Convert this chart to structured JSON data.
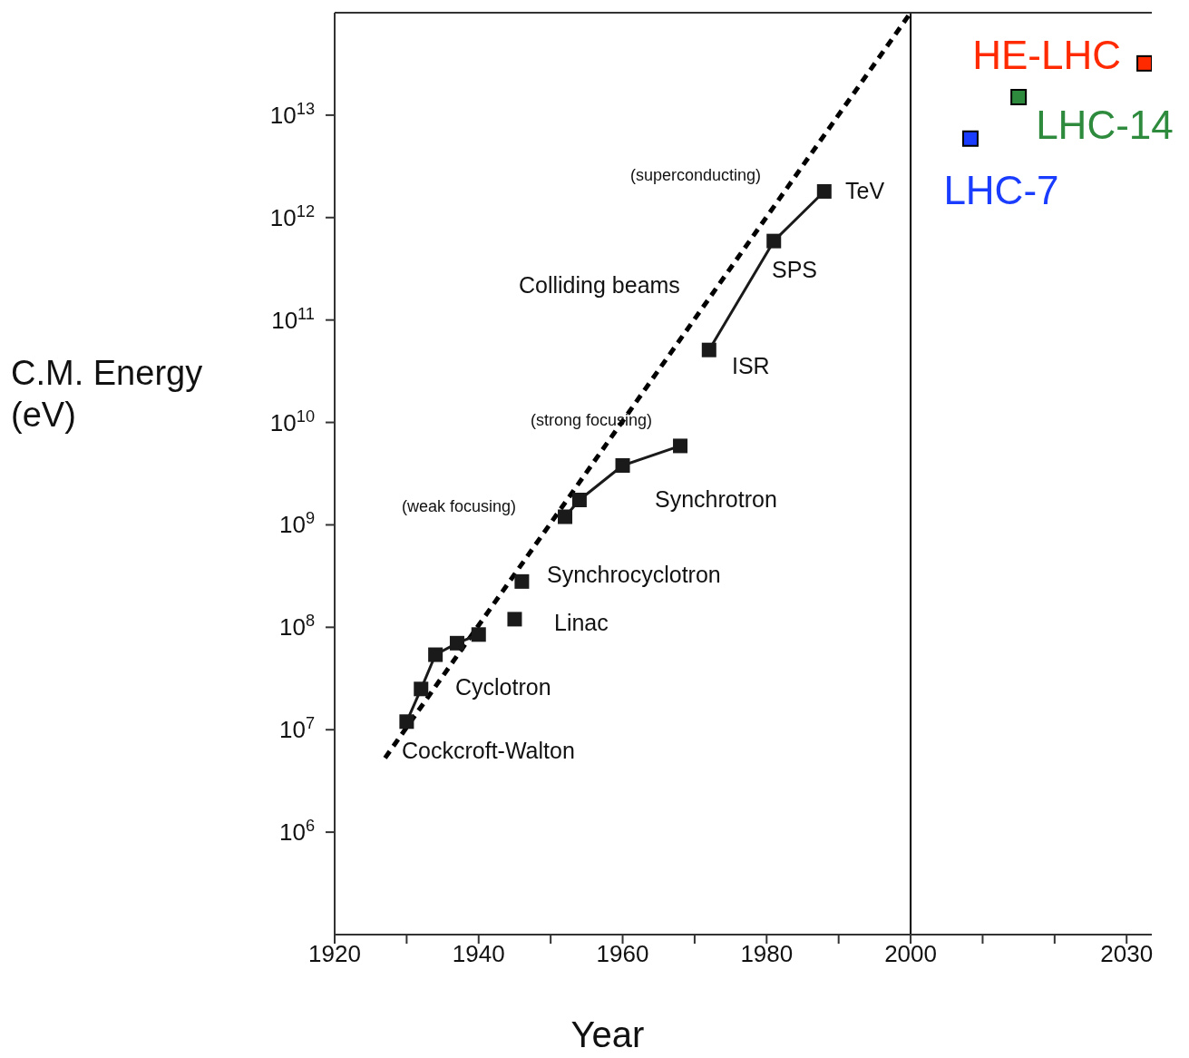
{
  "chart_data": {
    "type": "scatter",
    "xlabel": "Year",
    "ylabel": "C.M. Energy (eV)",
    "log": "y",
    "legend": false,
    "grid": false,
    "xlim": [
      1920,
      2033.5
    ],
    "xticks": [
      1920,
      {
        "value": 1930,
        "label": null
      },
      1940,
      {
        "value": 1950,
        "label": null
      },
      1960,
      {
        "value": 1970,
        "label": null
      },
      1980,
      {
        "value": 1990,
        "label": null
      },
      2000,
      {
        "value": 2010,
        "label": null
      },
      {
        "value": 2020,
        "label": null
      },
      2030
    ],
    "ylim": [
      100000,
      100000000000000
    ],
    "yticks": [
      {
        "value": 1000000,
        "label": "10$^{6}$"
      },
      {
        "value": 10000000,
        "label": "10$^{7}$"
      },
      {
        "value": 100000000,
        "label": "10$^{8}$"
      },
      {
        "value": 1000000000,
        "label": "10$^{9}$"
      },
      {
        "value": 10000000000,
        "label": "10$^{10}$"
      },
      {
        "value": 100000000000,
        "label": "10$^{11}$"
      },
      {
        "value": 1000000000000,
        "label": "10$^{12}$"
      },
      {
        "value": 10000000000000,
        "label": "10$^{13}$"
      }
    ],
    "ref_lines": [
      {
        "axis": "x",
        "value": 2000,
        "color": "#000000"
      }
    ],
    "series": [
      {
        "type": "line",
        "marker": "none",
        "line_style": "dashed",
        "color": "#000000",
        "x": [
          1927,
          2000
        ],
        "values": [
          5300000,
          100000000000000
        ]
      },
      {
        "type": "line",
        "marker": "square",
        "line_style": "solid",
        "color": "#1a1a1a",
        "x": [
          1930,
          1932,
          1934,
          1937,
          1940
        ],
        "values": [
          12000000,
          25000000,
          54000000,
          70000000,
          85000000
        ]
      },
      {
        "marker": "square",
        "color": "#1a1a1a",
        "x": [
          1945,
          1946
        ],
        "values": [
          120000000,
          280000000
        ]
      },
      {
        "type": "line",
        "marker": "square",
        "line_style": "solid",
        "color": "#1a1a1a",
        "x": [
          1952,
          1954,
          1960,
          1968
        ],
        "values": [
          1200000000,
          1750000000,
          3800000000,
          5900000000
        ]
      },
      {
        "type": "line",
        "marker": "square",
        "line_style": "solid",
        "color": "#1a1a1a",
        "x": [
          1972,
          1981,
          1988
        ],
        "values": [
          51000000000,
          590000000000,
          1800000000000
        ]
      },
      {
        "marker": "square",
        "name": "LHC-7",
        "color": "#1a3cff",
        "x": [
          2008.3
        ],
        "values": [
          5900000000000
        ]
      },
      {
        "marker": "square",
        "name": "LHC-14",
        "color": "#2e8b3e",
        "x": [
          2015
        ],
        "values": [
          15000000000000
        ]
      },
      {
        "marker": "square",
        "name": "HE-LHC",
        "color": "#ff2a00",
        "x": [
          2032.5
        ],
        "values": [
          32000000000000
        ]
      }
    ],
    "annotations": [
      "Cockcroft-Walton",
      "Cyclotron",
      "Linac",
      "Synchrocyclotron",
      "(weak focusing)",
      "Synchrotron",
      "(strong focusing)",
      "ISR",
      "Colliding beams",
      "SPS",
      "(superconducting)",
      "TeV"
    ]
  }
}
